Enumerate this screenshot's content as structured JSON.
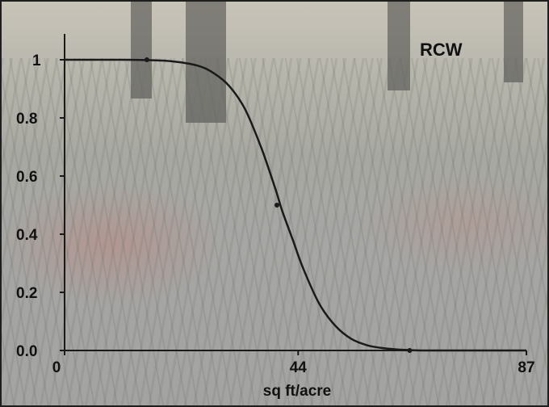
{
  "chart_data": {
    "type": "line",
    "title": "RCW",
    "xlabel": "sq ft/acre",
    "ylabel": "",
    "x_ticks": [
      "0",
      "44",
      "87"
    ],
    "y_ticks": [
      "0.0",
      "0.2",
      "0.4",
      "0.6",
      "0.8",
      "1"
    ],
    "xlim": [
      0,
      87
    ],
    "ylim": [
      0,
      1
    ],
    "grid": false,
    "series": [
      {
        "values_x": [
          0,
          5,
          10,
          15,
          20,
          25,
          28,
          31,
          34,
          37,
          39,
          40,
          41,
          43,
          45,
          48,
          51,
          54,
          57,
          60,
          64,
          68,
          72,
          76,
          80,
          87
        ],
        "values_y": [
          1.0,
          1.0,
          1.0,
          0.999,
          0.995,
          0.98,
          0.955,
          0.91,
          0.83,
          0.7,
          0.595,
          0.54,
          0.48,
          0.38,
          0.28,
          0.16,
          0.085,
          0.04,
          0.018,
          0.008,
          0.002,
          0.0,
          0.0,
          0.0,
          0.0,
          0.0
        ]
      }
    ],
    "markers": [
      {
        "x": 15.5,
        "y": 1.0
      },
      {
        "x": 40,
        "y": 0.5
      },
      {
        "x": 65,
        "y": 0.0
      }
    ],
    "line_color": "#1a1a1a"
  }
}
